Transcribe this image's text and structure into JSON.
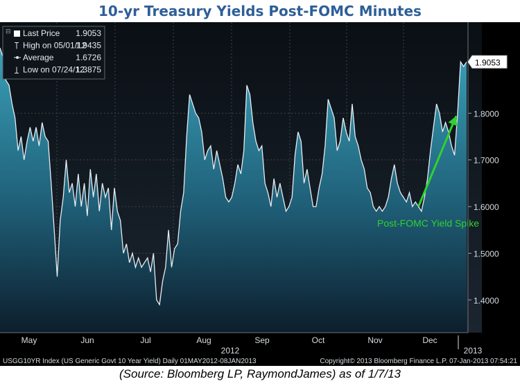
{
  "title": "10-yr Treasury Yields Post-FOMC Minutes",
  "caption": "(Source: Bloomberg LP, RaymondJames) as of 1/7/13",
  "chart_data": {
    "type": "area",
    "security": "USGG10YR Index (US Generic Govt 10 Year Yield)",
    "ylim": [
      1.33,
      1.995
    ],
    "y_ticks": [
      "1.4000",
      "1.5000",
      "1.6000",
      "1.7000",
      "1.8000"
    ],
    "months": [
      "May",
      "Jun",
      "Jul",
      "Aug",
      "Sep",
      "Oct",
      "Nov",
      "Dec"
    ],
    "year_labels": [
      "2012",
      "2013"
    ],
    "legend": [
      {
        "symbol": "box",
        "label": "Last Price",
        "value": "1.9053"
      },
      {
        "symbol": "high",
        "label": "High on 05/01/12",
        "value": "1.9435"
      },
      {
        "symbol": "avg",
        "label": "Average",
        "value": "1.6726"
      },
      {
        "symbol": "low",
        "label": "Low on 07/24/12",
        "value": "1.3875"
      }
    ],
    "last_value_label": "1.9053",
    "series": [
      {
        "values": [
          1.94,
          1.92,
          1.87,
          1.86,
          1.82,
          1.79,
          1.72,
          1.75,
          1.7,
          1.74,
          1.77,
          1.74,
          1.77,
          1.73,
          1.78,
          1.75,
          1.74,
          1.65,
          1.55,
          1.45,
          1.57,
          1.62,
          1.7,
          1.63,
          1.65,
          1.6,
          1.67,
          1.6,
          1.65,
          1.58,
          1.68,
          1.62,
          1.67,
          1.59,
          1.65,
          1.62,
          1.64,
          1.55,
          1.64,
          1.59,
          1.57,
          1.5,
          1.52,
          1.48,
          1.5,
          1.47,
          1.49,
          1.47,
          1.48,
          1.49,
          1.46,
          1.5,
          1.4,
          1.39,
          1.44,
          1.47,
          1.55,
          1.47,
          1.51,
          1.52,
          1.59,
          1.63,
          1.75,
          1.84,
          1.82,
          1.8,
          1.79,
          1.76,
          1.7,
          1.72,
          1.73,
          1.68,
          1.72,
          1.69,
          1.66,
          1.62,
          1.61,
          1.62,
          1.65,
          1.69,
          1.67,
          1.72,
          1.86,
          1.84,
          1.78,
          1.74,
          1.72,
          1.73,
          1.65,
          1.63,
          1.6,
          1.66,
          1.62,
          1.65,
          1.62,
          1.59,
          1.6,
          1.62,
          1.71,
          1.76,
          1.74,
          1.65,
          1.68,
          1.64,
          1.6,
          1.6,
          1.64,
          1.67,
          1.73,
          1.83,
          1.81,
          1.79,
          1.72,
          1.74,
          1.79,
          1.76,
          1.74,
          1.82,
          1.75,
          1.73,
          1.7,
          1.68,
          1.64,
          1.63,
          1.6,
          1.59,
          1.6,
          1.59,
          1.6,
          1.62,
          1.66,
          1.69,
          1.65,
          1.63,
          1.62,
          1.61,
          1.63,
          1.6,
          1.61,
          1.6,
          1.59,
          1.62,
          1.66,
          1.72,
          1.77,
          1.82,
          1.8,
          1.76,
          1.78,
          1.76,
          1.73,
          1.71,
          1.8,
          1.91,
          1.9,
          1.91
        ]
      }
    ],
    "annotation": {
      "text": "Post-FOMC Yield Spike",
      "arrow_from_index": 139,
      "arrow_to_index": 152
    },
    "footer_left": "USGG10YR Index (US Generic Govt 10 Year Yield)  Daily 01MAY2012-08JAN2013",
    "footer_right": "Copyright© 2013 Bloomberg Finance L.P.      07-Jan-2013 07:54:21"
  }
}
